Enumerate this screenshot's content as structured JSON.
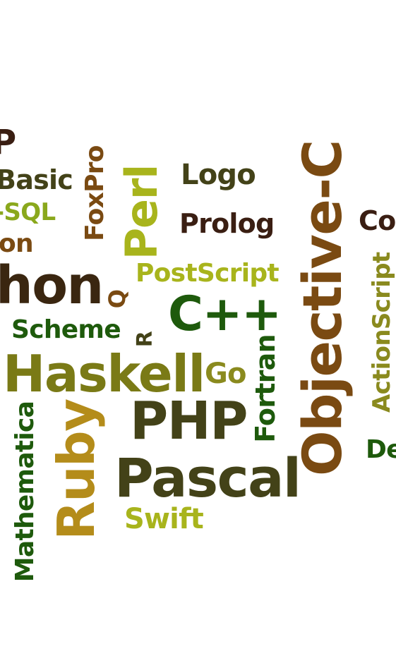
{
  "colors": {
    "dark_green": "#1e5a0c",
    "olive": "#8a8a1e",
    "lime": "#a8b41c",
    "brown": "#7a4a12",
    "dark_olive": "#434218",
    "dark_brown": "#3a1e12",
    "gold": "#b48c1a"
  },
  "words": {
    "p_fragment": "P",
    "basic": "Basic",
    "sql": "-SQL",
    "on": "on",
    "hon": "hon",
    "foxpro": "FoxPro",
    "perl": "Perl",
    "logo": "Logo",
    "prolog": "Prolog",
    "objective_c": "Objective-C",
    "co": "Co",
    "postscript": "PostScript",
    "q": "Q",
    "cpp": "C++",
    "actionscript": "ActionScript",
    "scheme": "Scheme",
    "r": "R",
    "haskell": "Haskell",
    "go": "Go",
    "fortran": "Fortran",
    "ruby": "Ruby",
    "php": "PHP",
    "mathematica": "Mathematica",
    "pascal": "Pascal",
    "de": "De",
    "swift": "Swift"
  }
}
